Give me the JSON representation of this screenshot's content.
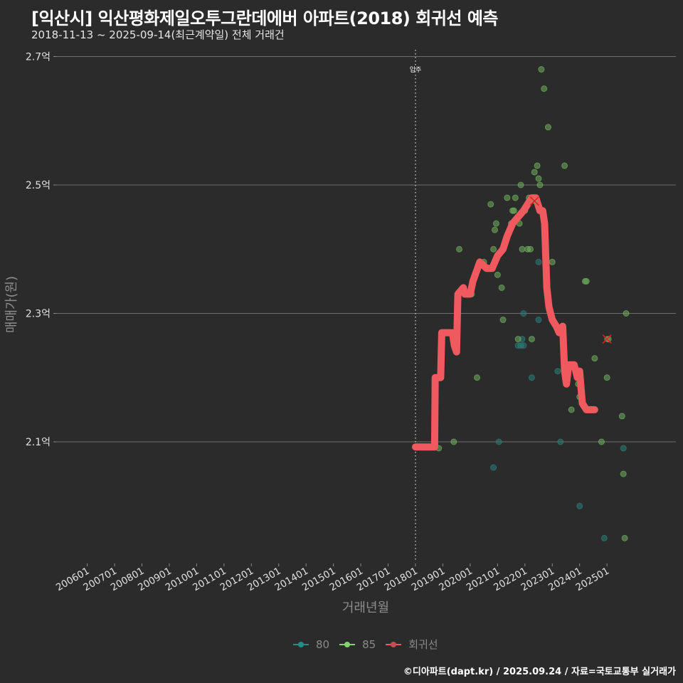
{
  "header": {
    "title": "[익산시] 익산평화제일오투그란데에버 아파트(2018) 회귀선 예측",
    "subtitle": "2018-11-13 ~ 2025-09-14(최근계약일) 전체 거래건"
  },
  "legend": {
    "items": [
      {
        "label": "80",
        "color": "#1f8f8a"
      },
      {
        "label": "85",
        "color": "#7fd66a"
      },
      {
        "label": "회귀선",
        "color": "#f05a5f"
      }
    ]
  },
  "footer": {
    "credit": "©디아파트(dapt.kr) / 2025.09.24 / 자료=국토교통부 실거래가"
  },
  "chart_data": {
    "type": "scatter",
    "title": "[익산시] 익산평화제일오투그란데에버 아파트(2018) 회귀선 예측",
    "subtitle": "2018-11-13 ~ 2025-09-14(최근계약일) 전체 거래건",
    "xlabel": "거래년월",
    "ylabel": "매매가(원)",
    "x_ticks": [
      "200601",
      "200701",
      "200801",
      "200901",
      "201001",
      "201101",
      "201201",
      "201301",
      "201401",
      "201501",
      "201601",
      "201701",
      "201801",
      "201901",
      "202001",
      "202101",
      "202201",
      "202301",
      "202401",
      "202501"
    ],
    "y_ticks": [
      "2.1억",
      "2.3억",
      "2.5억",
      "2.7억"
    ],
    "y_tick_values": [
      2.1,
      2.3,
      2.5,
      2.7
    ],
    "xlim": [
      2005.5,
      2025.9
    ],
    "ylim": [
      1.93,
      2.71
    ],
    "grid": "horizontal",
    "legend_position": "bottom",
    "annotation": {
      "label": "입주",
      "x": 2018.0
    },
    "series": [
      {
        "name": "80",
        "color": "#1f8f8a",
        "points": [
          [
            2020.85,
            2.06
          ],
          [
            2021.05,
            2.1
          ],
          [
            2021.95,
            2.3
          ],
          [
            2021.9,
            2.26
          ],
          [
            2021.75,
            2.25
          ],
          [
            2021.85,
            2.25
          ],
          [
            2021.95,
            2.25
          ],
          [
            2022.25,
            2.2
          ],
          [
            2022.5,
            2.29
          ],
          [
            2022.5,
            2.38
          ],
          [
            2023.2,
            2.21
          ],
          [
            2023.3,
            2.1
          ],
          [
            2024.0,
            2.0
          ],
          [
            2024.9,
            1.95
          ],
          [
            2025.6,
            2.09
          ]
        ]
      },
      {
        "name": "85",
        "color": "#7fd66a",
        "points": [
          [
            2018.85,
            2.09
          ],
          [
            2019.4,
            2.1
          ],
          [
            2019.6,
            2.4
          ],
          [
            2020.05,
            2.33
          ],
          [
            2020.25,
            2.2
          ],
          [
            2020.5,
            2.38
          ],
          [
            2020.65,
            2.37
          ],
          [
            2020.75,
            2.47
          ],
          [
            2020.85,
            2.4
          ],
          [
            2020.9,
            2.43
          ],
          [
            2020.95,
            2.44
          ],
          [
            2021.0,
            2.36
          ],
          [
            2021.15,
            2.34
          ],
          [
            2021.2,
            2.29
          ],
          [
            2021.35,
            2.48
          ],
          [
            2021.5,
            2.44
          ],
          [
            2021.55,
            2.46
          ],
          [
            2021.6,
            2.46
          ],
          [
            2021.65,
            2.48
          ],
          [
            2021.75,
            2.26
          ],
          [
            2021.8,
            2.44
          ],
          [
            2021.85,
            2.5
          ],
          [
            2021.9,
            2.4
          ],
          [
            2022.0,
            2.46
          ],
          [
            2022.1,
            2.47
          ],
          [
            2022.15,
            2.48
          ],
          [
            2022.25,
            2.26
          ],
          [
            2022.1,
            2.4
          ],
          [
            2022.2,
            2.4
          ],
          [
            2022.25,
            2.48
          ],
          [
            2022.35,
            2.52
          ],
          [
            2022.45,
            2.53
          ],
          [
            2022.5,
            2.51
          ],
          [
            2022.55,
            2.5
          ],
          [
            2022.6,
            2.68
          ],
          [
            2022.7,
            2.65
          ],
          [
            2022.85,
            2.59
          ],
          [
            2023.0,
            2.38
          ],
          [
            2023.45,
            2.53
          ],
          [
            2023.7,
            2.15
          ],
          [
            2023.95,
            2.19
          ],
          [
            2024.0,
            2.17
          ],
          [
            2024.2,
            2.35
          ],
          [
            2024.25,
            2.35
          ],
          [
            2024.55,
            2.23
          ],
          [
            2024.8,
            2.1
          ],
          [
            2025.0,
            2.2
          ],
          [
            2025.05,
            2.26
          ],
          [
            2025.55,
            2.14
          ],
          [
            2025.6,
            2.05
          ],
          [
            2025.65,
            1.95
          ],
          [
            2025.7,
            2.3
          ]
        ]
      },
      {
        "name": "회귀선",
        "color": "#f05a5f",
        "type": "line",
        "points": [
          [
            2018.0,
            2.092
          ],
          [
            2018.7,
            2.092
          ],
          [
            2018.72,
            2.2
          ],
          [
            2018.92,
            2.2
          ],
          [
            2018.96,
            2.27
          ],
          [
            2019.35,
            2.27
          ],
          [
            2019.42,
            2.25
          ],
          [
            2019.5,
            2.24
          ],
          [
            2019.55,
            2.33
          ],
          [
            2019.75,
            2.34
          ],
          [
            2019.8,
            2.33
          ],
          [
            2020.0,
            2.33
          ],
          [
            2020.1,
            2.35
          ],
          [
            2020.35,
            2.38
          ],
          [
            2020.6,
            2.37
          ],
          [
            2020.8,
            2.37
          ],
          [
            2021.0,
            2.39
          ],
          [
            2021.2,
            2.4
          ],
          [
            2021.35,
            2.42
          ],
          [
            2021.55,
            2.44
          ],
          [
            2021.75,
            2.45
          ],
          [
            2021.95,
            2.46
          ],
          [
            2022.1,
            2.47
          ],
          [
            2022.25,
            2.48
          ],
          [
            2022.4,
            2.48
          ],
          [
            2022.55,
            2.46
          ],
          [
            2022.65,
            2.46
          ],
          [
            2022.72,
            2.44
          ],
          [
            2022.8,
            2.34
          ],
          [
            2022.88,
            2.31
          ],
          [
            2023.0,
            2.29
          ],
          [
            2023.15,
            2.28
          ],
          [
            2023.25,
            2.27
          ],
          [
            2023.38,
            2.28
          ],
          [
            2023.45,
            2.21
          ],
          [
            2023.52,
            2.19
          ],
          [
            2023.6,
            2.22
          ],
          [
            2023.8,
            2.22
          ],
          [
            2023.92,
            2.2
          ],
          [
            2024.0,
            2.21
          ],
          [
            2024.1,
            2.16
          ],
          [
            2024.25,
            2.15
          ],
          [
            2024.35,
            2.15
          ],
          [
            2024.55,
            2.15
          ]
        ]
      }
    ],
    "highlighted_points": [
      {
        "x": 2022.35,
        "y": 2.475,
        "marker": "x"
      },
      {
        "x": 2025.0,
        "y": 2.26,
        "marker": "x"
      }
    ]
  }
}
